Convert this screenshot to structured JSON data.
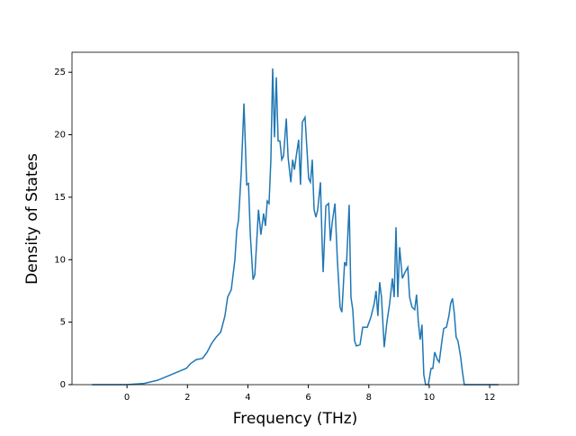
{
  "chart_data": {
    "type": "line",
    "xlabel": "Frequency (THz)",
    "ylabel": "Density of States",
    "xlim": [
      -1.82,
      12.95
    ],
    "ylim": [
      0,
      26.6
    ],
    "xticks": [
      0,
      2,
      4,
      6,
      8,
      10,
      12
    ],
    "yticks": [
      0,
      5,
      10,
      15,
      20,
      25
    ],
    "series": [
      {
        "color": "#1f77b4",
        "x": [
          -1.16,
          0,
          0.57,
          1.01,
          1.46,
          1.76,
          1.96,
          2.11,
          2.29,
          2.5,
          2.65,
          2.8,
          2.95,
          3.1,
          3.24,
          3.33,
          3.45,
          3.57,
          3.63,
          3.69,
          3.78,
          3.87,
          3.96,
          4.02,
          4.08,
          4.17,
          4.23,
          4.35,
          4.43,
          4.52,
          4.58,
          4.64,
          4.7,
          4.76,
          4.82,
          4.88,
          4.94,
          5.0,
          5.06,
          5.12,
          5.18,
          5.27,
          5.33,
          5.42,
          5.48,
          5.54,
          5.6,
          5.68,
          5.74,
          5.8,
          5.89,
          5.95,
          6.01,
          6.07,
          6.13,
          6.19,
          6.25,
          6.31,
          6.4,
          6.46,
          6.49,
          6.58,
          6.67,
          6.73,
          6.79,
          6.88,
          6.96,
          7.05,
          7.11,
          7.2,
          7.26,
          7.35,
          7.41,
          7.47,
          7.53,
          7.59,
          7.71,
          7.8,
          7.95,
          8.07,
          8.18,
          8.24,
          8.3,
          8.36,
          8.42,
          8.51,
          8.6,
          8.69,
          8.78,
          8.84,
          8.9,
          8.96,
          9.02,
          9.11,
          9.2,
          9.29,
          9.35,
          9.43,
          9.52,
          9.58,
          9.64,
          9.7,
          9.76,
          9.82,
          9.88,
          9.97,
          10.06,
          10.12,
          10.18,
          10.27,
          10.33,
          10.42,
          10.48,
          10.57,
          10.65,
          10.71,
          10.77,
          10.83,
          10.89,
          10.95,
          11.04,
          11.1,
          11.16,
          11.58,
          12.29
        ],
        "values": [
          0,
          0,
          0.1,
          0.35,
          0.8,
          1.1,
          1.3,
          1.7,
          2.0,
          2.1,
          2.6,
          3.3,
          3.8,
          4.2,
          5.5,
          7.0,
          7.6,
          10,
          12.3,
          13.2,
          17,
          22.5,
          16,
          16.1,
          12,
          8.4,
          8.8,
          14,
          12,
          13.7,
          12.7,
          14.7,
          14.5,
          18,
          25.3,
          19.8,
          24.6,
          19.5,
          19.5,
          18,
          18.3,
          21.3,
          18.2,
          16.2,
          18,
          17.2,
          18.3,
          19.6,
          16,
          21,
          21.4,
          19,
          16.5,
          16.2,
          18,
          14,
          13.4,
          14,
          16.2,
          11,
          9,
          14.3,
          14.5,
          11.5,
          13,
          14.5,
          10,
          6.2,
          5.8,
          9.8,
          9.5,
          14.4,
          7,
          6,
          3.5,
          3.1,
          3.2,
          4.6,
          4.6,
          5.4,
          6.5,
          7.5,
          5.5,
          8.2,
          7,
          3,
          5,
          6.5,
          8.5,
          7,
          12.6,
          7,
          11,
          8.5,
          9,
          9.4,
          7,
          6.2,
          6,
          7.2,
          5,
          3.6,
          4.8,
          0.8,
          0,
          0,
          1.3,
          1.3,
          2.6,
          2,
          1.8,
          3.5,
          4.5,
          4.6,
          5.5,
          6.5,
          6.9,
          5.7,
          3.8,
          3.5,
          2.2,
          1,
          0,
          0,
          0
        ]
      }
    ]
  }
}
